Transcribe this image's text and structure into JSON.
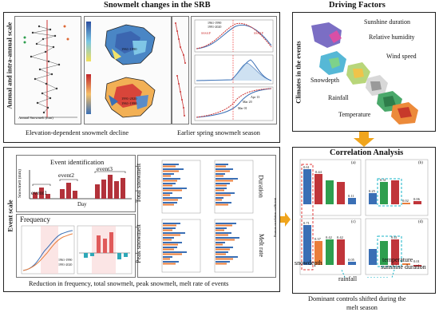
{
  "top": {
    "title": "Snowmelt changes in the SRB",
    "side_label": "Annual and intra-annual scale",
    "caption_left": "Elevation-dependent snowmelt decline",
    "caption_right": "Earlier spring snowmelt season",
    "map_labels": [
      "1961-1990",
      "1991-2020",
      "1961-1990"
    ],
    "axis_labels": [
      "Annual Snowmelt (mm)",
      "Average Annual Snowmelt (mm)",
      "Proportion Difference (%)"
    ],
    "legend_periods": [
      "1961-1990",
      "1991-2020"
    ],
    "season_marks": [
      "Apr 13",
      "Mar 20",
      "Mar 01"
    ],
    "curve_labels": [
      "SSSAP",
      "SSSAP"
    ]
  },
  "drivers": {
    "title": "Driving Factors",
    "side_label": "Climates in the events",
    "factors": [
      "Sunshine duration",
      "Relative humidity",
      "Wind speed",
      "Snowdepth",
      "Rainfall",
      "Temperature"
    ]
  },
  "event": {
    "side_label": "Event scale",
    "identification_title": "Event identification",
    "events": [
      "event1",
      "event2",
      "event3"
    ],
    "y_label": "Snowmelt (mm)",
    "x_label": "Day",
    "frequency_title": "Frequency",
    "freq_legend": [
      "1961-1990",
      "1991-2020"
    ],
    "metrics": [
      "Total snowmelt",
      "Duration",
      "Peak snowmelt",
      "Melt rate"
    ],
    "caption": "Reduction in frequency, total snowmelt, peak snowmelt, melt rate of events"
  },
  "correlation": {
    "title": "Correlation Analysis",
    "panels": [
      "(a)",
      "(b)",
      "(c)",
      "(d)"
    ],
    "values_top": [
      "0.61",
      "0.44",
      "0.11",
      "0.25",
      "0.31",
      "0.02",
      "0.06"
    ],
    "values_bottom": [
      "0.71",
      "0.37",
      "0.42",
      "0.42",
      "0.05",
      "0.41",
      "0.01"
    ],
    "y_label": "Pearson correlation coefficient",
    "annot_snowdepth": "snowdepth",
    "annot_rainfall": "rainfall",
    "annot_temp": "temperature",
    "annot_sun": "sunshine duration",
    "caption_line1": "Dominant controls shifted during the",
    "caption_line2": "melt season"
  },
  "colors": {
    "bar_red": "#c0353a",
    "bar_blue": "#3a6fb5",
    "bar_green": "#2e9e4e",
    "bar_orange": "#ea7d3a",
    "arrow": "#f0a51d",
    "dash_red": "#e23b3b",
    "dash_cyan": "#1ab5c9"
  }
}
